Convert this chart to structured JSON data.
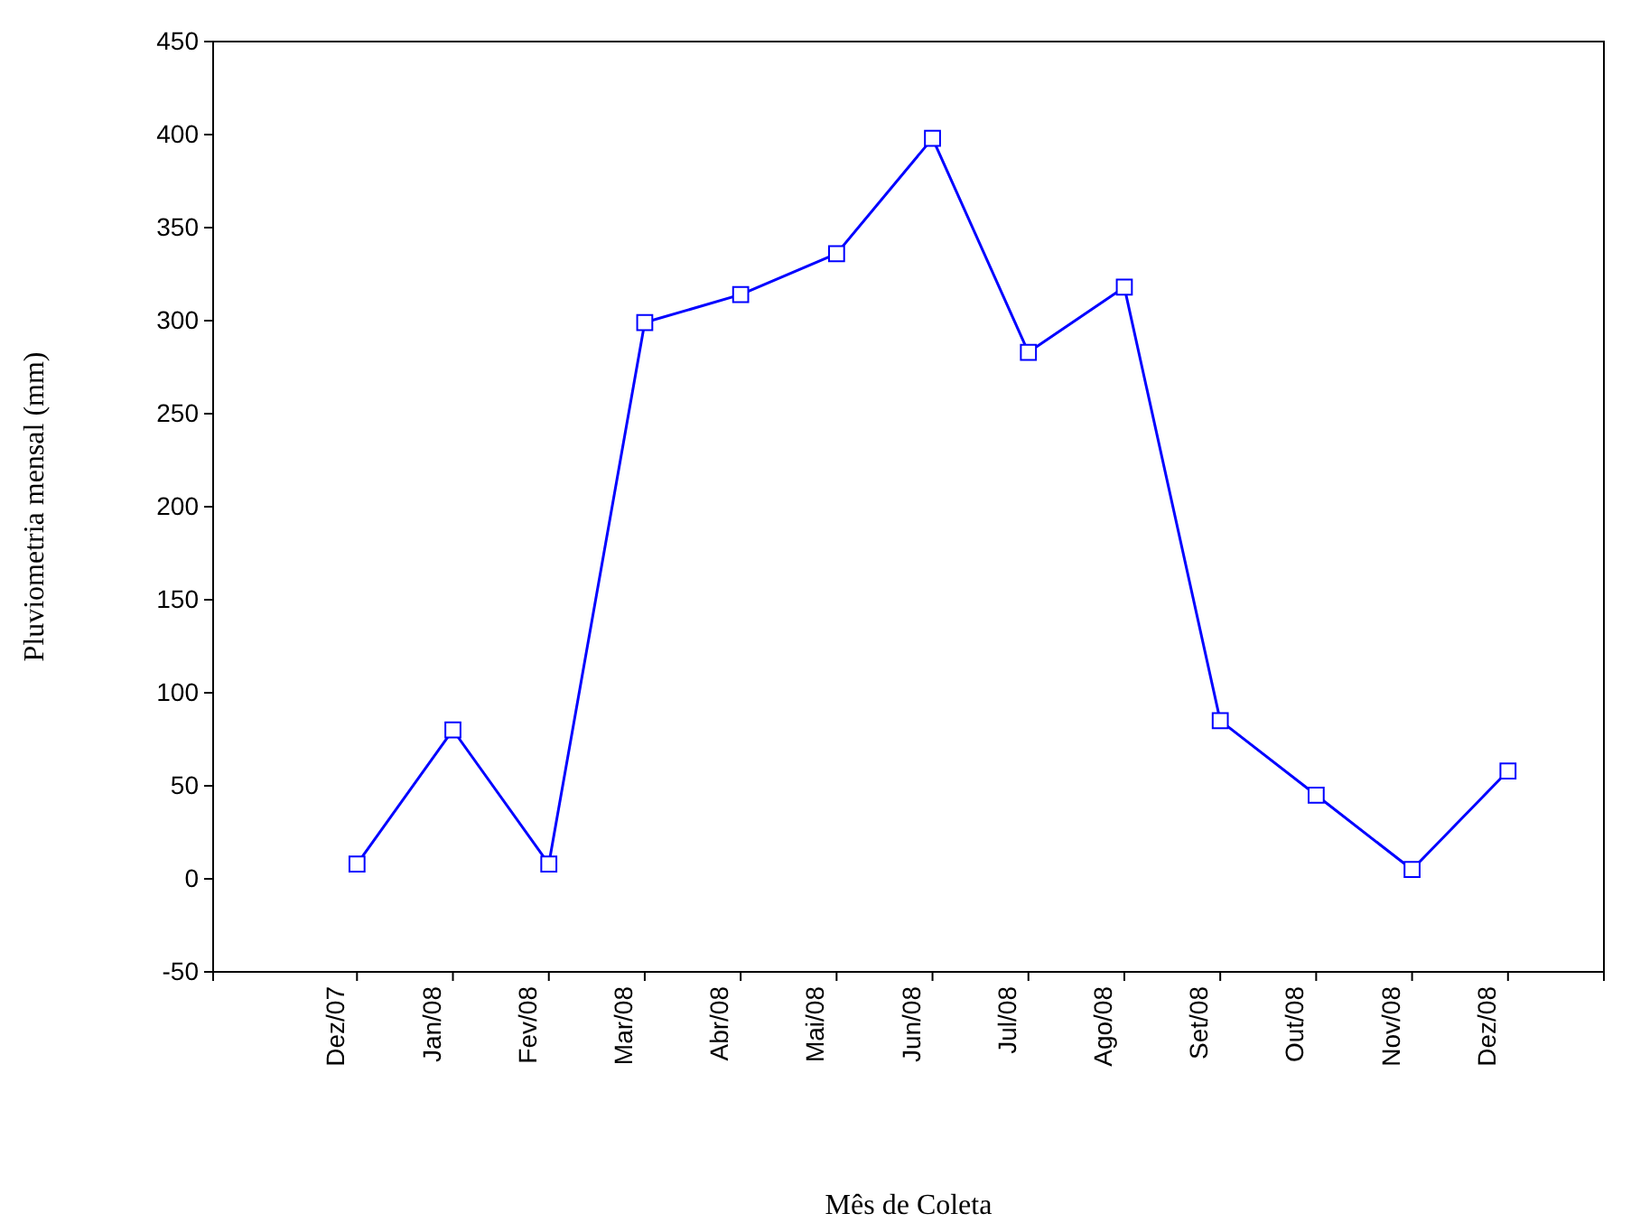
{
  "chart_data": {
    "type": "line",
    "xlabel": "Mês de Coleta",
    "ylabel": "Pluviometria mensal (mm)",
    "categories": [
      "Dez/07",
      "Jan/08",
      "Fev/08",
      "Mar/08",
      "Abr/08",
      "Mai/08",
      "Jun/08",
      "Jul/08",
      "Ago/08",
      "Set/08",
      "Out/08",
      "Nov/08",
      "Dez/08"
    ],
    "series": [
      {
        "color": "#0000ff",
        "values": [
          8,
          80,
          8,
          299,
          314,
          336,
          398,
          283,
          318,
          85,
          45,
          5,
          58
        ]
      }
    ],
    "ylim": [
      -50,
      450
    ],
    "yticks": [
      -50,
      0,
      50,
      100,
      150,
      200,
      250,
      300,
      350,
      400,
      450
    ],
    "grid": false,
    "marker": "square",
    "line_style": "solid"
  }
}
